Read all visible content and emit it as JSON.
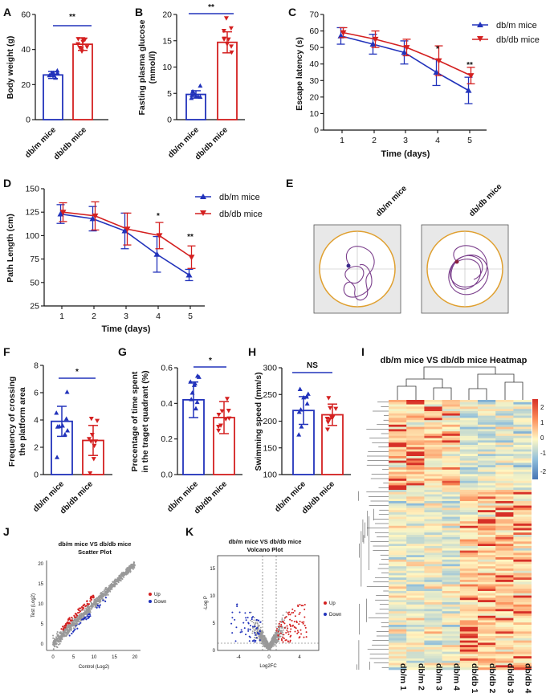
{
  "colors": {
    "blue": "#2233bb",
    "red": "#d42020",
    "grey": "#999999",
    "bg": "#ffffff"
  },
  "panels": {
    "A": {
      "letter": "A",
      "ylabel": "Body weight (g)",
      "ticks": [
        "0",
        "20",
        "40",
        "60"
      ],
      "cats": [
        "db/m mice",
        "db/db mice"
      ],
      "sig": "**"
    },
    "B": {
      "letter": "B",
      "ylabel1": "Fasting plasma glucose",
      "ylabel2": "(mmol/l)",
      "ticks": [
        "0",
        "5",
        "10",
        "15",
        "20"
      ],
      "cats": [
        "db/m mice",
        "db/db mice"
      ],
      "sig": "**"
    },
    "C": {
      "letter": "C",
      "ylabel": "Escape latency (s)",
      "xlabel": "Time (days)",
      "ticks": [
        "0",
        "10",
        "20",
        "30",
        "40",
        "50",
        "60",
        "70"
      ],
      "xticks": [
        "1",
        "2",
        "3",
        "4",
        "5"
      ],
      "legend": [
        "db/m mice",
        "db/db mice"
      ],
      "sig4": "*",
      "sig5": "**"
    },
    "D": {
      "letter": "D",
      "ylabel": "Path Length (cm)",
      "xlabel": "Time (days)",
      "ticks": [
        "25",
        "50",
        "75",
        "100",
        "125",
        "150"
      ],
      "xticks": [
        "1",
        "2",
        "3",
        "4",
        "5"
      ],
      "legend": [
        "db/m mice",
        "db/db mice"
      ],
      "sig4": "*",
      "sig5": "**"
    },
    "E": {
      "letter": "E",
      "cols": [
        "db/m mice",
        "db/db mice"
      ]
    },
    "F": {
      "letter": "F",
      "ylabel1": "Frequency of crossing",
      "ylabel2": "the platform area",
      "ticks": [
        "0",
        "2",
        "4",
        "6",
        "8"
      ],
      "cats": [
        "db/m mice",
        "db/db mice"
      ],
      "sig": "*"
    },
    "G": {
      "letter": "G",
      "ylabel1": "Precentage of time spent",
      "ylabel2": "in the traget quadrant (%)",
      "ticks": [
        "0.0",
        "0.2",
        "0.4",
        "0.6"
      ],
      "cats": [
        "db/m mice",
        "db/db mice"
      ],
      "sig": "*"
    },
    "H": {
      "letter": "H",
      "ylabel": "Swimming speed (mm/s)",
      "ticks": [
        "100",
        "150",
        "200",
        "250",
        "300"
      ],
      "cats": [
        "db/m mice",
        "db/db mice"
      ],
      "sig": "NS"
    },
    "I": {
      "letter": "I",
      "title": "db/m mice VS db/db mice Heatmap",
      "scale": [
        "2",
        "1",
        "0",
        "-1",
        "-2"
      ],
      "cols": [
        "db/m 1",
        "db/m 2",
        "db/m 3",
        "db/m 4",
        "db/db 1",
        "db/db 2",
        "db/db 3",
        "db/db 4"
      ]
    },
    "J": {
      "letter": "J",
      "title1": "db/m mice VS db/db mice",
      "title2": "Scatter Plot",
      "xlabel": "Control (Log2)",
      "ylabel": "Test (Log2)",
      "ticks": [
        "0",
        "5",
        "10",
        "15",
        "20"
      ],
      "legend": [
        "Up",
        "Down"
      ]
    },
    "K": {
      "letter": "K",
      "title1": "db/m mice VS db/db mice",
      "title2": "Volcano Plot",
      "xlabel": "Log2FC",
      "ylabel": "-Log P",
      "xticks": [
        "-4",
        "0",
        "4"
      ],
      "yticks": [
        "0",
        "5",
        "10",
        "15"
      ],
      "legend": [
        "Up",
        "Down"
      ]
    }
  },
  "chart_data": [
    {
      "id": "A",
      "type": "bar",
      "title": "",
      "ylabel": "Body weight (g)",
      "categories": [
        "db/m mice",
        "db/db mice"
      ],
      "values": [
        25.5,
        43
      ],
      "errors": [
        2,
        3.5
      ],
      "ylim": [
        0,
        60
      ]
    },
    {
      "id": "B",
      "type": "bar",
      "title": "",
      "ylabel": "Fasting plasma glucose (mmol/l)",
      "categories": [
        "db/m mice",
        "db/db mice"
      ],
      "values": [
        4.8,
        14.7
      ],
      "errors": [
        0.7,
        2
      ],
      "ylim": [
        0,
        20
      ]
    },
    {
      "id": "C",
      "type": "line",
      "ylabel": "Escape latency (s)",
      "xlabel": "Time (days)",
      "x": [
        1,
        2,
        3,
        4,
        5
      ],
      "ylim": [
        0,
        70
      ],
      "series": [
        {
          "name": "db/m mice",
          "values": [
            57,
            52,
            47,
            35,
            24
          ],
          "errors": [
            5,
            6,
            7,
            8,
            8
          ]
        },
        {
          "name": "db/db mice",
          "values": [
            59,
            55,
            50,
            42,
            33
          ],
          "errors": [
            3,
            5,
            5,
            9,
            5
          ]
        }
      ]
    },
    {
      "id": "D",
      "type": "line",
      "ylabel": "Path Length (cm)",
      "xlabel": "Time (days)",
      "x": [
        1,
        2,
        3,
        4,
        5
      ],
      "ylim": [
        25,
        150
      ],
      "series": [
        {
          "name": "db/m mice",
          "values": [
            123,
            118,
            105,
            80,
            58
          ],
          "errors": [
            10,
            13,
            19,
            19,
            6
          ]
        },
        {
          "name": "db/db mice",
          "values": [
            125,
            121,
            107,
            100,
            77
          ],
          "errors": [
            10,
            15,
            17,
            14,
            12
          ]
        }
      ]
    },
    {
      "id": "F",
      "type": "bar",
      "ylabel": "Frequency of crossing the platform area",
      "categories": [
        "db/m mice",
        "db/db mice"
      ],
      "values": [
        3.9,
        2.5
      ],
      "errors": [
        1.1,
        1.1
      ],
      "ylim": [
        0,
        8
      ]
    },
    {
      "id": "G",
      "type": "bar",
      "ylabel": "Precentage of time spent in the traget quadrant (%)",
      "categories": [
        "db/m mice",
        "db/db mice"
      ],
      "values": [
        0.42,
        0.32
      ],
      "errors": [
        0.1,
        0.09
      ],
      "ylim": [
        0,
        0.6
      ]
    },
    {
      "id": "H",
      "type": "bar",
      "ylabel": "Swimming speed (mm/s)",
      "categories": [
        "db/m mice",
        "db/db mice"
      ],
      "values": [
        220,
        212
      ],
      "errors": [
        26,
        20
      ],
      "ylim": [
        100,
        300
      ]
    }
  ]
}
